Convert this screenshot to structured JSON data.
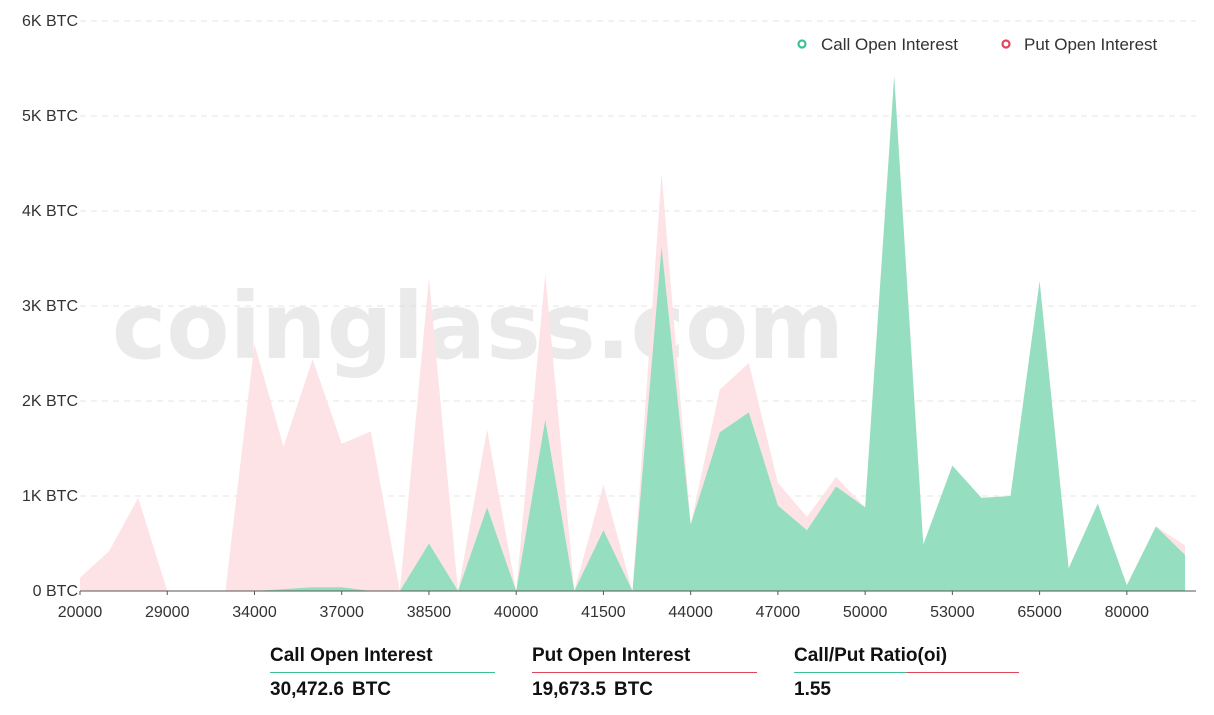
{
  "chart_data": {
    "type": "area",
    "watermark": "coinglass.com",
    "y_unit": "BTC",
    "ylim": [
      0,
      6000
    ],
    "y_ticks": [
      "0 BTC",
      "1K BTC",
      "2K BTC",
      "3K BTC",
      "4K BTC",
      "5K BTC",
      "6K BTC"
    ],
    "y_tick_values": [
      0,
      1000,
      2000,
      3000,
      4000,
      5000,
      6000
    ],
    "x_tick_labels": [
      "20000",
      "29000",
      "34000",
      "37000",
      "38500",
      "40000",
      "41500",
      "44000",
      "47000",
      "50000",
      "53000",
      "65000",
      "80000"
    ],
    "x_tick_indices": [
      0,
      3,
      6,
      9,
      12,
      15,
      18,
      21,
      24,
      27,
      30,
      33,
      36
    ],
    "grid": true,
    "legend_position": "top-right",
    "series": [
      {
        "name": "Call Open Interest",
        "color": "#3cc28e",
        "fill": "#95dfc0",
        "values": [
          0,
          0,
          0,
          0,
          0,
          0,
          0,
          20,
          40,
          40,
          0,
          0,
          500,
          0,
          880,
          0,
          1800,
          0,
          640,
          0,
          3620,
          700,
          1670,
          1880,
          900,
          640,
          1100,
          880,
          5420,
          490,
          1320,
          980,
          1000,
          3260,
          240,
          920,
          60,
          680,
          380
        ]
      },
      {
        "name": "Put  Open Interest",
        "color": "#e0455c",
        "fill": "#fde3e6",
        "values": [
          140,
          420,
          980,
          0,
          0,
          0,
          2600,
          1520,
          2440,
          1550,
          1680,
          0,
          3300,
          0,
          1700,
          0,
          3340,
          0,
          1120,
          0,
          4400,
          700,
          2120,
          2400,
          1140,
          780,
          1200,
          880,
          5420,
          490,
          1320,
          980,
          1000,
          3260,
          240,
          920,
          60,
          680,
          480
        ]
      }
    ]
  },
  "stats": {
    "call": {
      "label": "Call Open Interest",
      "value": "30,472.6",
      "unit": "BTC"
    },
    "put": {
      "label": "Put Open Interest",
      "value": "19,673.5",
      "unit": "BTC"
    },
    "ratio": {
      "label": "Call/Put Ratio(oi)",
      "value": "1.55"
    }
  }
}
